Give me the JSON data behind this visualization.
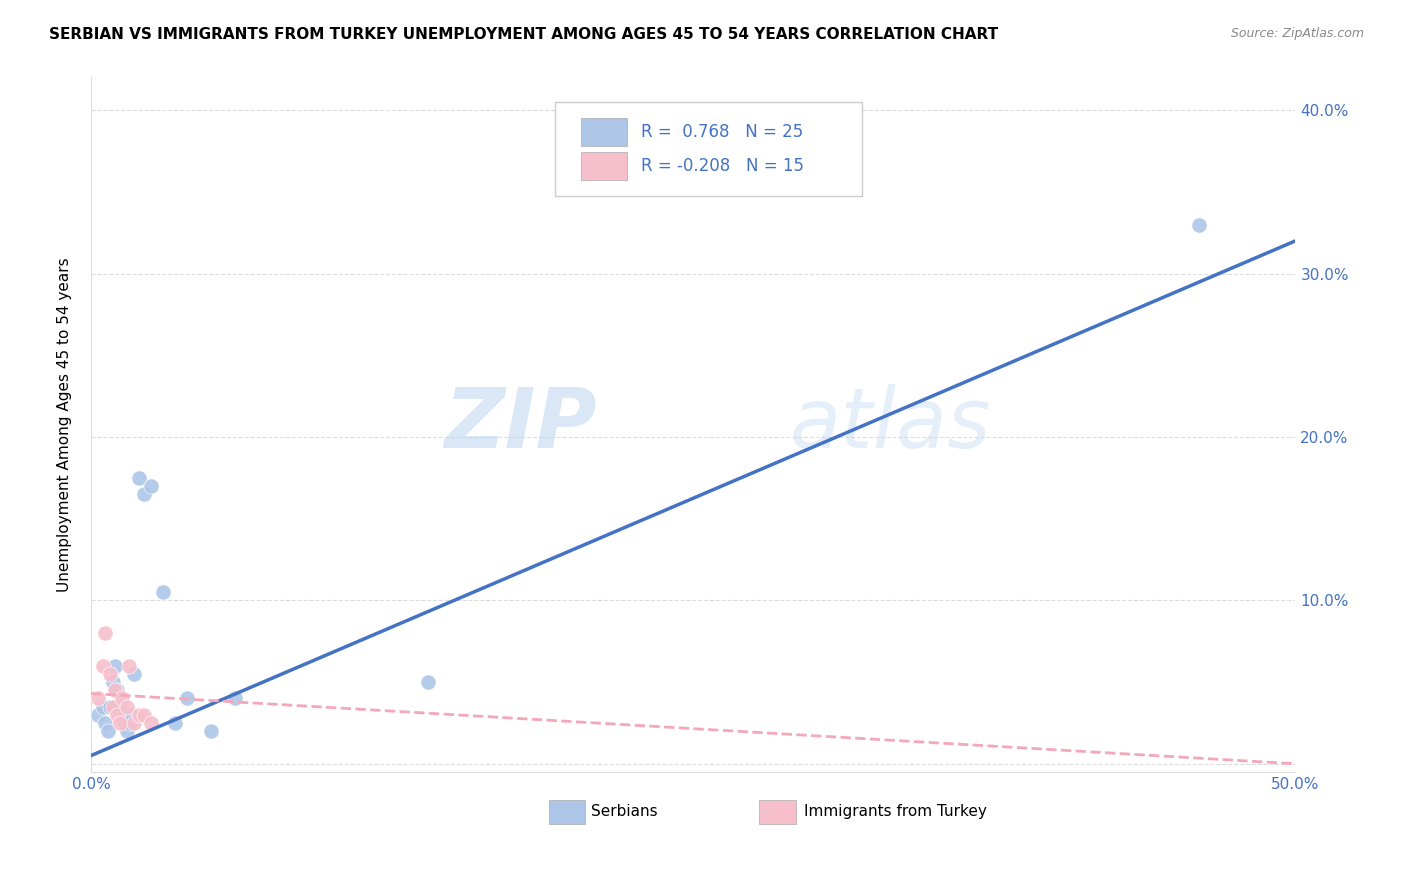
{
  "title": "SERBIAN VS IMMIGRANTS FROM TURKEY UNEMPLOYMENT AMONG AGES 45 TO 54 YEARS CORRELATION CHART",
  "source": "Source: ZipAtlas.com",
  "ylabel": "Unemployment Among Ages 45 to 54 years",
  "xlim": [
    0.0,
    0.5
  ],
  "ylim": [
    -0.005,
    0.42
  ],
  "xticks": [
    0.0,
    0.1,
    0.2,
    0.3,
    0.4,
    0.5
  ],
  "yticks": [
    0.0,
    0.1,
    0.2,
    0.3,
    0.4
  ],
  "ytick_labels_left": [
    "",
    "",
    "",
    "",
    ""
  ],
  "ytick_labels_right": [
    "",
    "10.0%",
    "20.0%",
    "30.0%",
    "40.0%"
  ],
  "xtick_labels": [
    "0.0%",
    "",
    "",
    "",
    "",
    "50.0%"
  ],
  "serbian_R": 0.768,
  "serbian_N": 25,
  "turkey_R": -0.208,
  "turkey_N": 15,
  "serbian_color": "#adc6e8",
  "turkey_color": "#f7bfcc",
  "serbian_line_color": "#4472c4",
  "turkey_line_color": "#f4a7b9",
  "watermark_zip": "ZIP",
  "watermark_atlas": "atlas",
  "serbian_x": [
    0.003,
    0.005,
    0.006,
    0.007,
    0.008,
    0.009,
    0.01,
    0.011,
    0.012,
    0.013,
    0.014,
    0.015,
    0.016,
    0.017,
    0.018,
    0.02,
    0.022,
    0.025,
    0.03,
    0.035,
    0.04,
    0.05,
    0.06,
    0.14,
    0.46
  ],
  "serbian_y": [
    0.03,
    0.035,
    0.025,
    0.02,
    0.035,
    0.05,
    0.06,
    0.045,
    0.035,
    0.03,
    0.025,
    0.02,
    0.025,
    0.03,
    0.055,
    0.175,
    0.165,
    0.17,
    0.105,
    0.025,
    0.04,
    0.02,
    0.04,
    0.05,
    0.33
  ],
  "turkey_x": [
    0.003,
    0.005,
    0.006,
    0.008,
    0.009,
    0.01,
    0.011,
    0.012,
    0.013,
    0.015,
    0.016,
    0.018,
    0.02,
    0.022,
    0.025
  ],
  "turkey_y": [
    0.04,
    0.06,
    0.08,
    0.055,
    0.035,
    0.045,
    0.03,
    0.025,
    0.04,
    0.035,
    0.06,
    0.025,
    0.03,
    0.03,
    0.025
  ],
  "serbian_line_x": [
    0.0,
    0.5
  ],
  "serbian_line_y": [
    0.005,
    0.32
  ],
  "turkey_line_x": [
    0.0,
    0.5
  ],
  "turkey_line_y": [
    0.043,
    0.0
  ]
}
